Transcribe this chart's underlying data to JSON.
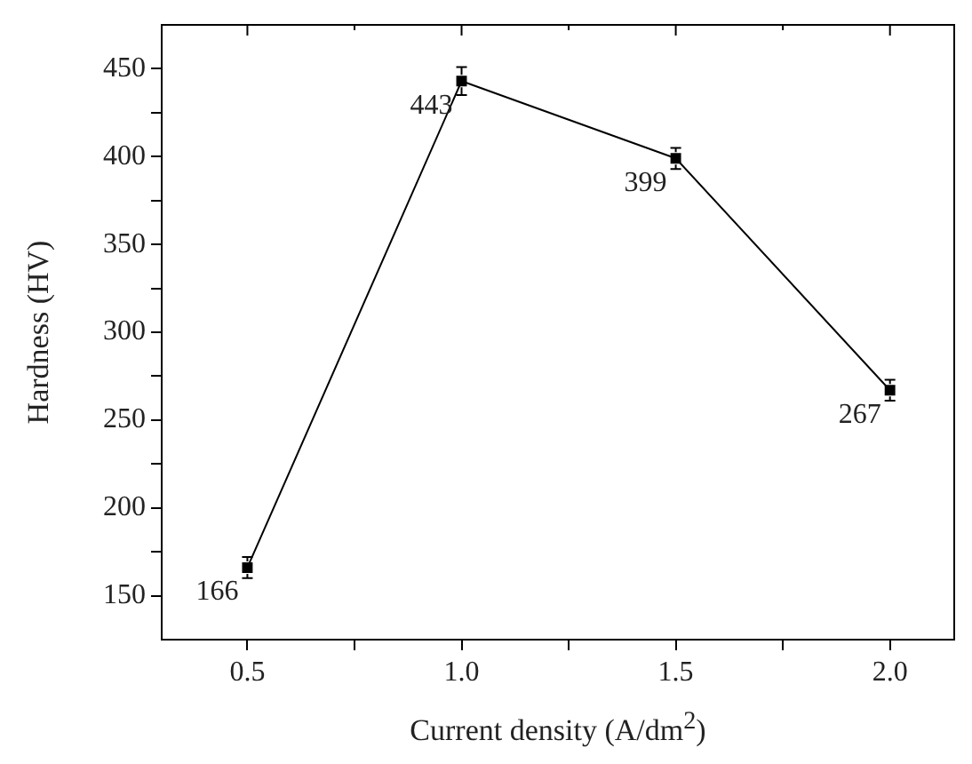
{
  "chart_data": {
    "type": "line",
    "xlabel": "Current density (A/dm$^{2}$)",
    "ylabel": "Hardness (HV)",
    "x": [
      0.5,
      1.0,
      1.5,
      2.0
    ],
    "series": [
      {
        "color": "#000000",
        "values": [
          166,
          443,
          399,
          267
        ],
        "errors": [
          6,
          8,
          6,
          6
        ]
      }
    ],
    "xlim": [
      0.3,
      2.15
    ],
    "ylim": [
      125,
      475
    ],
    "xticks": [
      0.5,
      {
        "value": 0.75,
        "label": null
      },
      {
        "value": 1.0,
        "label": "1.0"
      },
      {
        "value": 1.25,
        "label": null
      },
      1.5,
      {
        "value": 1.75,
        "label": null
      },
      {
        "value": 2.0,
        "label": "2.0"
      }
    ],
    "yticks": [
      150,
      {
        "value": 175,
        "label": null
      },
      200,
      {
        "value": 225,
        "label": null
      },
      250,
      {
        "value": 275,
        "label": null
      },
      300,
      {
        "value": 325,
        "label": null
      },
      350,
      {
        "value": 375,
        "label": null
      },
      400,
      {
        "value": 425,
        "label": null
      },
      450
    ],
    "marker": "square",
    "line_style": "solid",
    "data_labels": true,
    "grid": false,
    "legend": false
  }
}
